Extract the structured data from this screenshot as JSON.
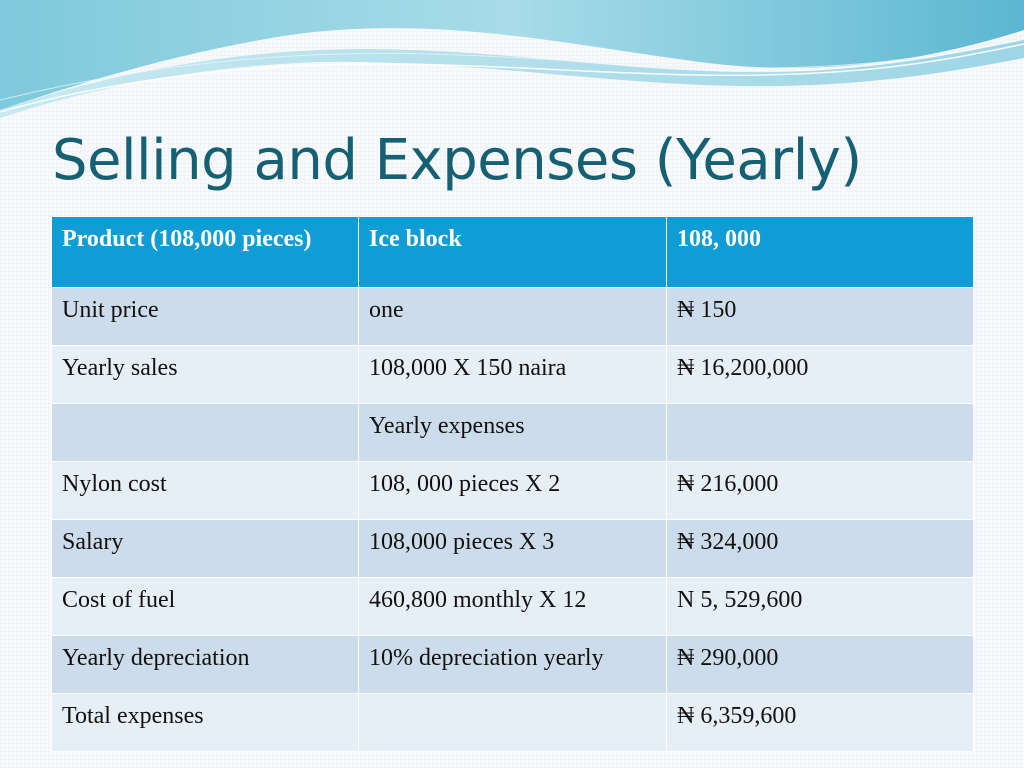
{
  "slide": {
    "title": "Selling and Expenses (Yearly)"
  },
  "table": {
    "header": [
      "Product (108,000 pieces)",
      "Ice block",
      "108, 000"
    ],
    "rows": [
      [
        "Unit price",
        "one",
        "₦ 150"
      ],
      [
        "Yearly sales",
        "108,000 X 150 naira",
        "₦ 16,200,000"
      ],
      [
        "",
        "Yearly expenses",
        ""
      ],
      [
        "Nylon cost",
        "108, 000 pieces X 2",
        "₦ 216,000"
      ],
      [
        "Salary",
        "108,000 pieces X 3",
        "₦ 324,000"
      ],
      [
        "Cost of fuel",
        "460,800 monthly X 12",
        "N 5, 529,600"
      ],
      [
        "Yearly depreciation",
        "10% depreciation yearly",
        "₦ 290,000"
      ],
      [
        "Total expenses",
        "",
        "₦ 6,359,600"
      ]
    ]
  },
  "colors": {
    "header_bg": "#109cd4",
    "row_dark": "#cddcea",
    "row_light": "#e6eef6",
    "title": "#166073"
  }
}
